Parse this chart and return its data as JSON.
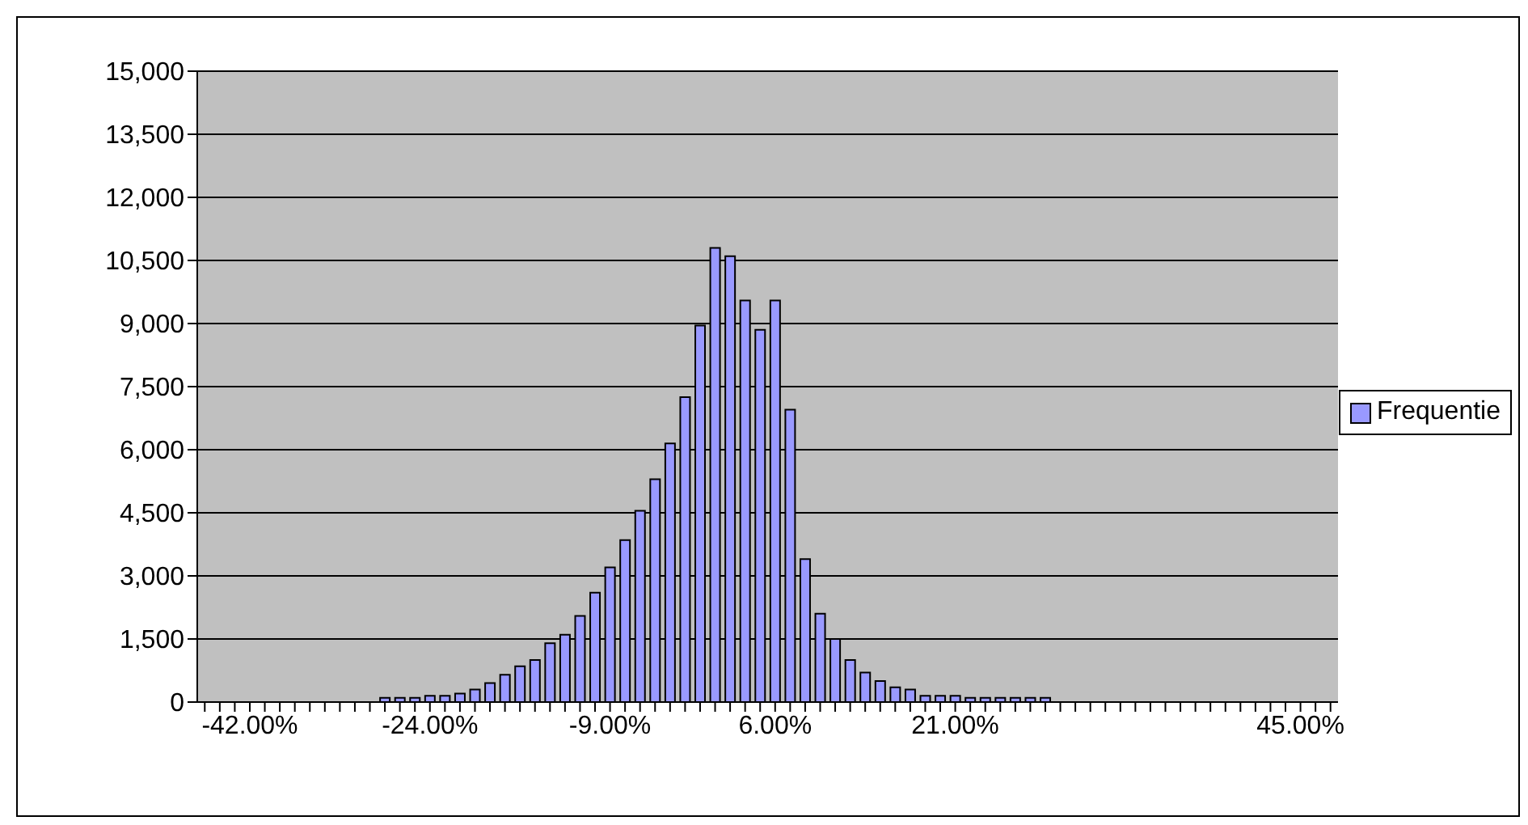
{
  "chart_data": {
    "type": "bar",
    "categories": [
      null,
      null,
      null,
      "-42.00%",
      null,
      null,
      null,
      null,
      null,
      null,
      null,
      null,
      null,
      null,
      null,
      "-24.00%",
      null,
      null,
      null,
      null,
      null,
      null,
      null,
      null,
      null,
      null,
      null,
      "-9.00%",
      null,
      null,
      null,
      null,
      null,
      null,
      null,
      null,
      null,
      null,
      "6.00%",
      null,
      null,
      null,
      null,
      null,
      null,
      null,
      null,
      null,
      null,
      null,
      "21.00%",
      null,
      null,
      null,
      null,
      null,
      null,
      null,
      null,
      null,
      null,
      null,
      null,
      null,
      null,
      null,
      null,
      null,
      null,
      null,
      null,
      null,
      null,
      "45.00%",
      null,
      null
    ],
    "series": [
      {
        "name": "Frequentie",
        "color": "#9999ff",
        "values": [
          0,
          0,
          0,
          0,
          0,
          0,
          0,
          0,
          0,
          0,
          0,
          0,
          100,
          100,
          100,
          150,
          150,
          200,
          300,
          450,
          650,
          850,
          1000,
          1400,
          1600,
          2050,
          2600,
          3200,
          3850,
          4550,
          5300,
          6150,
          7250,
          8950,
          10800,
          10600,
          9550,
          8850,
          9550,
          6950,
          3400,
          2100,
          1500,
          1000,
          700,
          500,
          350,
          300,
          150,
          150,
          150,
          100,
          100,
          100,
          100,
          100,
          100,
          0,
          0,
          0,
          0,
          0,
          0,
          0,
          0,
          0,
          0,
          0,
          0,
          0,
          0,
          0,
          0,
          0,
          0,
          0
        ]
      }
    ],
    "ylim": [
      0,
      15000
    ],
    "yticks": [
      {
        "value": 0,
        "label": "0"
      },
      {
        "value": 1500,
        "label": "1,500"
      },
      {
        "value": 3000,
        "label": "3,000"
      },
      {
        "value": 4500,
        "label": "4,500"
      },
      {
        "value": 6000,
        "label": "6,000"
      },
      {
        "value": 7500,
        "label": "7,500"
      },
      {
        "value": 9000,
        "label": "9,000"
      },
      {
        "value": 10500,
        "label": "10,500"
      },
      {
        "value": 12000,
        "label": "12,000"
      },
      {
        "value": 13500,
        "label": "13,500"
      },
      {
        "value": 15000,
        "label": "15,000"
      }
    ],
    "grid": "y",
    "legend": "right"
  }
}
